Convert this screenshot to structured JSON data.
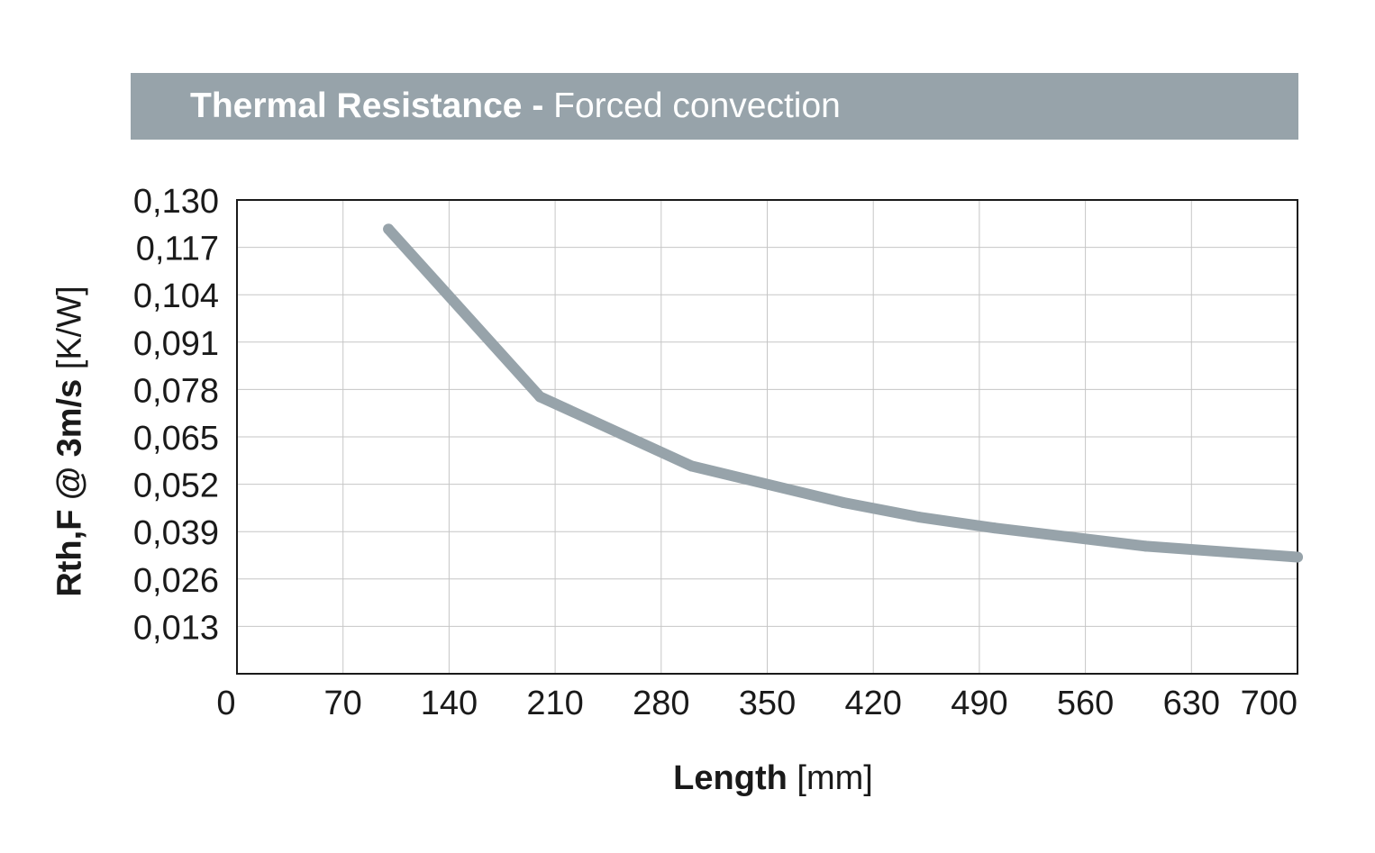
{
  "header": {
    "title_bold": "Thermal Resistance -",
    "title_regular": "Forced convection",
    "bar_color": "#97a3aa"
  },
  "chart_data": {
    "type": "line",
    "title": "Thermal Resistance - Forced convection",
    "ylabel_bold": "Rth,F @ 3m/s",
    "ylabel_unit": "[K/W]",
    "xlabel_bold": "Length",
    "xlabel_unit": "[mm]",
    "xlim": [
      0,
      700
    ],
    "ylim": [
      0,
      0.13
    ],
    "x_ticks": [
      "0",
      "70",
      "140",
      "210",
      "280",
      "350",
      "420",
      "490",
      "560",
      "630",
      "700"
    ],
    "x_tick_values": [
      0,
      70,
      140,
      210,
      280,
      350,
      420,
      490,
      560,
      630,
      700
    ],
    "y_ticks": [
      "0,013",
      "0,026",
      "0,039",
      "0,052",
      "0,065",
      "0,078",
      "0,091",
      "0,104",
      "0,117",
      "0,130"
    ],
    "y_tick_values": [
      0.013,
      0.026,
      0.039,
      0.052,
      0.065,
      0.078,
      0.091,
      0.104,
      0.117,
      0.13
    ],
    "grid": true,
    "series": [
      {
        "color": "#97a3aa",
        "x": [
          100,
          200,
          300,
          400,
          450,
          500,
          600,
          700
        ],
        "y": [
          0.122,
          0.076,
          0.057,
          0.047,
          0.043,
          0.04,
          0.035,
          0.032
        ]
      }
    ]
  }
}
